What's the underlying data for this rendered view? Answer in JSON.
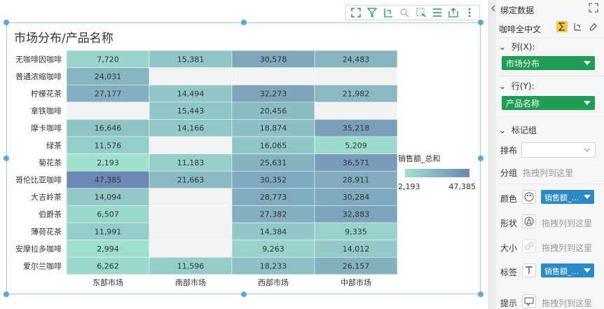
{
  "chart_title": "市场分布/产品名称",
  "toolbar": {
    "icons": [
      "expand-icon",
      "filter-icon",
      "drill-icon",
      "zoom-icon",
      "select-icon",
      "list-icon",
      "export-icon",
      "more-icon"
    ]
  },
  "panel": {
    "title": "绑定数据",
    "dataset": "咖啡全中文",
    "columns_label": "列(X):",
    "columns_field": "市场分布",
    "rows_label": "行(Y):",
    "rows_field": "产品名称",
    "marks_label": "标记组",
    "layout_label": "排布",
    "group_label": "分组",
    "drag_hint": "拖拽列到这里",
    "color_label": "颜色",
    "color_field": "销售额_...",
    "shape_label": "形状",
    "size_label": "大小",
    "tag_label": "标签",
    "tag_field": "销售额_...",
    "tooltip_label": "提示",
    "accent_green": "#1f9d55",
    "accent_blue": "#2b8ac6"
  },
  "legend": {
    "title": "销售额_总和",
    "min_label": "2,193",
    "max_label": "47,385"
  },
  "chart_data": {
    "type": "heatmap",
    "title": "市场分布/产品名称",
    "columns": [
      "东部市场",
      "南部市场",
      "西部市场",
      "中部市场"
    ],
    "rows": [
      "无咖啡因咖啡",
      "普通浓缩咖啡",
      "柠檬花茶",
      "拿铁咖啡",
      "摩卡咖啡",
      "绿茶",
      "菊花茶",
      "哥伦比亚咖啡",
      "大吉岭茶",
      "伯爵茶",
      "薄荷花茶",
      "安摩拉多咖啡",
      "爱尔兰咖啡"
    ],
    "values": [
      [
        7720,
        15381,
        30578,
        24483
      ],
      [
        24031,
        null,
        null,
        null
      ],
      [
        27177,
        14494,
        32273,
        21982
      ],
      [
        null,
        15443,
        20456,
        null
      ],
      [
        16646,
        14166,
        18874,
        35218
      ],
      [
        11576,
        null,
        16065,
        5209
      ],
      [
        2193,
        11183,
        25631,
        36571
      ],
      [
        47385,
        21663,
        30352,
        28911
      ],
      [
        14094,
        null,
        28773,
        30284
      ],
      [
        6507,
        null,
        27382,
        32883
      ],
      [
        11991,
        null,
        14384,
        9335
      ],
      [
        2994,
        null,
        9263,
        14012
      ],
      [
        6262,
        11596,
        18233,
        26157
      ]
    ],
    "labels": [
      [
        "7,720",
        "15,381",
        "30,578",
        "24,483"
      ],
      [
        "24,031",
        "",
        "",
        ""
      ],
      [
        "27,177",
        "14,494",
        "32,273",
        "21,982"
      ],
      [
        "",
        "15,443",
        "20,456",
        ""
      ],
      [
        "16,646",
        "14,166",
        "18,874",
        "35,218"
      ],
      [
        "11,576",
        "",
        "16,065",
        "5,209"
      ],
      [
        "2,193",
        "11,183",
        "25,631",
        "36,571"
      ],
      [
        "47,385",
        "21,663",
        "30,352",
        "28,911"
      ],
      [
        "14,094",
        "",
        "28,773",
        "30,284"
      ],
      [
        "6,507",
        "",
        "27,382",
        "32,883"
      ],
      [
        "11,991",
        "",
        "14,384",
        "9,335"
      ],
      [
        "2,994",
        "",
        "9,263",
        "14,012"
      ],
      [
        "6,262",
        "11,596",
        "18,233",
        "26,157"
      ]
    ],
    "min": 2193,
    "max": 47385,
    "color_low": "#9fe0cf",
    "color_high": "#6c87b3",
    "empty_color": "#f2f2f2"
  }
}
